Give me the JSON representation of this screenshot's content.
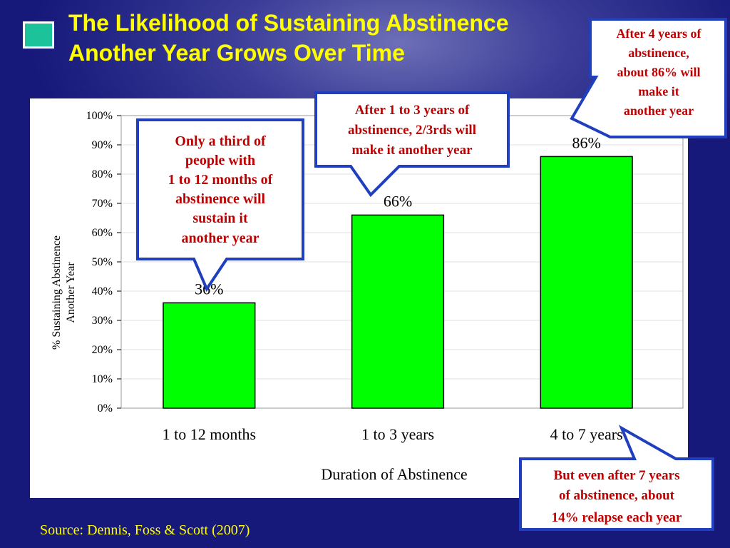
{
  "title": {
    "line1": "The Likelihood of Sustaining Abstinence",
    "line2": "Another Year Grows Over Time"
  },
  "source": "Source: Dennis, Foss & Scott (2007)",
  "colors": {
    "background": "#16187a",
    "title": "#ffff00",
    "bar": "#00ff00",
    "callout_border": "#1f3fbf",
    "callout_text": "#c00000"
  },
  "icons": {
    "slide_bullet": "square-bullet-icon"
  },
  "chart_data": {
    "type": "bar",
    "categories": [
      "1 to 12 months",
      "1 to 3 years",
      "4 to 7 years"
    ],
    "values": [
      36,
      66,
      86
    ],
    "data_labels": [
      "36%",
      "66%",
      "86%"
    ],
    "xlabel": "Duration of Abstinence",
    "ylabel_lines": [
      "% Sustaining Abstinence",
      "Another Year"
    ],
    "ylim": [
      0,
      100
    ],
    "yticks": [
      "0%",
      "10%",
      "20%",
      "30%",
      "40%",
      "50%",
      "60%",
      "70%",
      "80%",
      "90%",
      "100%"
    ],
    "grid": true,
    "legend": "none"
  },
  "callouts": {
    "first_year": [
      "Only a third of",
      "people with",
      "1 to 12 months of",
      "abstinence will",
      "sustain it",
      "another year"
    ],
    "one_to_three": [
      "After 1 to 3 years of",
      "abstinence, 2/3rds will",
      "make it another year"
    ],
    "four_years": [
      "After 4 years of",
      "abstinence,",
      "about 86% will",
      "make it",
      "another year"
    ],
    "relapse": [
      "But even after 7 years",
      "of abstinence, about",
      "14% relapse each year"
    ]
  }
}
